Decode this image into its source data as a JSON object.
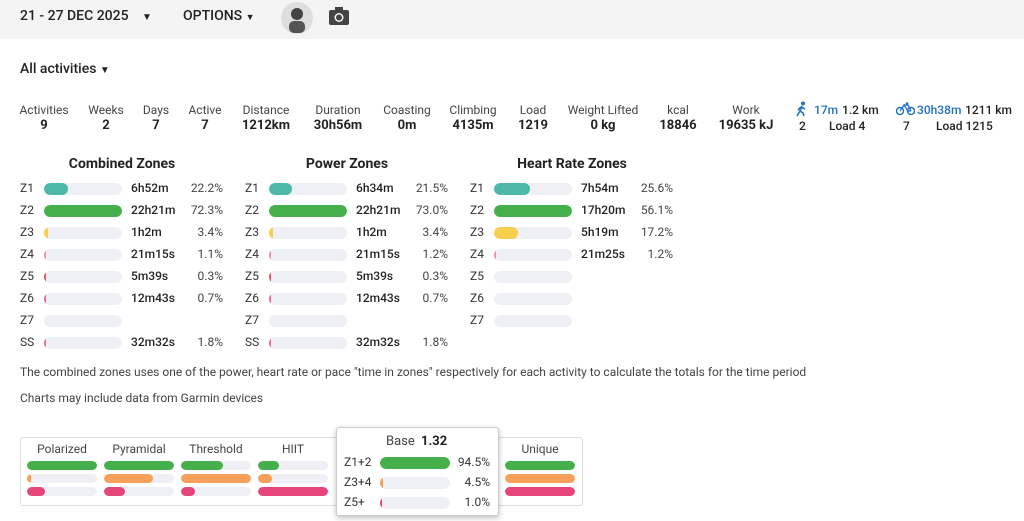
{
  "header": {
    "date_range": "21 - 27 DEC 2025",
    "options": "OPTIONS"
  },
  "filter": "All activities",
  "stats": [
    {
      "label": "Activities",
      "value": "9"
    },
    {
      "label": "Weeks",
      "value": "2"
    },
    {
      "label": "Days",
      "value": "7"
    },
    {
      "label": "Active",
      "value": "7"
    },
    {
      "label": "Distance",
      "value": "1212km"
    },
    {
      "label": "Duration",
      "value": "30h56m"
    },
    {
      "label": "Coasting",
      "value": "0m"
    },
    {
      "label": "Climbing",
      "value": "4135m"
    },
    {
      "label": "Load",
      "value": "1219"
    },
    {
      "label": "Weight Lifted",
      "value": "0 kg"
    },
    {
      "label": "kcal",
      "value": "18846"
    },
    {
      "label": "Work",
      "value": "19635 kJ"
    }
  ],
  "sport_stats": [
    {
      "time": "17m",
      "distance": "1.2 km",
      "count": "2",
      "load": "Load 4"
    },
    {
      "time": "30h38m",
      "distance": "1211 km",
      "count": "7",
      "load": "Load 1215"
    }
  ],
  "zone_tables": [
    {
      "title": "Combined Zones",
      "rows": [
        {
          "zone": "Z1",
          "time": "6h52m",
          "pct": 22.2,
          "pct_label": "22.2%"
        },
        {
          "zone": "Z2",
          "time": "22h21m",
          "pct": 72.3,
          "pct_label": "72.3%"
        },
        {
          "zone": "Z3",
          "time": "1h2m",
          "pct": 3.4,
          "pct_label": "3.4%"
        },
        {
          "zone": "Z4",
          "time": "21m15s",
          "pct": 1.1,
          "pct_label": "1.1%"
        },
        {
          "zone": "Z5",
          "time": "5m39s",
          "pct": 0.3,
          "pct_label": "0.3%"
        },
        {
          "zone": "Z6",
          "time": "12m43s",
          "pct": 0.7,
          "pct_label": "0.7%"
        },
        {
          "zone": "Z7"
        },
        {
          "zone": "SS",
          "time": "32m32s",
          "pct": 1.8,
          "pct_label": "1.8%"
        }
      ]
    },
    {
      "title": "Power Zones",
      "rows": [
        {
          "zone": "Z1",
          "time": "6h34m",
          "pct": 21.5,
          "pct_label": "21.5%"
        },
        {
          "zone": "Z2",
          "time": "22h21m",
          "pct": 73.0,
          "pct_label": "73.0%"
        },
        {
          "zone": "Z3",
          "time": "1h2m",
          "pct": 3.4,
          "pct_label": "3.4%"
        },
        {
          "zone": "Z4",
          "time": "21m15s",
          "pct": 1.2,
          "pct_label": "1.2%"
        },
        {
          "zone": "Z5",
          "time": "5m39s",
          "pct": 0.3,
          "pct_label": "0.3%"
        },
        {
          "zone": "Z6",
          "time": "12m43s",
          "pct": 0.7,
          "pct_label": "0.7%"
        },
        {
          "zone": "Z7"
        },
        {
          "zone": "SS",
          "time": "32m32s",
          "pct": 1.8,
          "pct_label": "1.8%"
        }
      ]
    },
    {
      "title": "Heart Rate Zones",
      "rows": [
        {
          "zone": "Z1",
          "time": "7h54m",
          "pct": 25.6,
          "pct_label": "25.6%"
        },
        {
          "zone": "Z2",
          "time": "17h20m",
          "pct": 56.1,
          "pct_label": "56.1%"
        },
        {
          "zone": "Z3",
          "time": "5h19m",
          "pct": 17.2,
          "pct_label": "17.2%"
        },
        {
          "zone": "Z4",
          "time": "21m25s",
          "pct": 1.2,
          "pct_label": "1.2%"
        },
        {
          "zone": "Z5"
        },
        {
          "zone": "Z6"
        },
        {
          "zone": "Z7"
        }
      ]
    }
  ],
  "notes": [
    "The combined zones uses one of the power, heart rate or pace \"time in zones\" respectively for each activity to calculate the totals for the time period",
    "Charts may include data from Garmin devices"
  ],
  "distribution": {
    "cards": [
      {
        "name": "Polarized",
        "bars": [
          100,
          5,
          25
        ]
      },
      {
        "name": "Pyramidal",
        "bars": [
          100,
          70,
          30
        ]
      },
      {
        "name": "Threshold",
        "bars": [
          60,
          100,
          20
        ]
      },
      {
        "name": "HIIT",
        "bars": [
          30,
          20,
          100
        ]
      },
      {
        "name": "Unique",
        "bars": [
          100,
          100,
          100
        ]
      }
    ],
    "popup": {
      "title": "Base",
      "score": "1.32",
      "rows": [
        {
          "zone": "Z1+2",
          "pct": 94.5,
          "pct_label": "94.5%"
        },
        {
          "zone": "Z3+4",
          "pct": 4.5,
          "pct_label": "4.5%"
        },
        {
          "zone": "Z5+",
          "pct": 1.0,
          "pct_label": "1.0%"
        }
      ]
    }
  }
}
